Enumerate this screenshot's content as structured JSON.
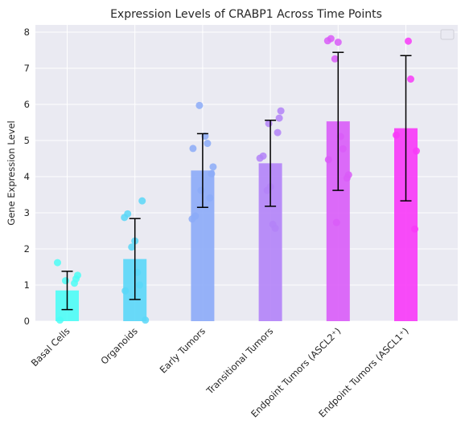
{
  "chart_data": {
    "type": "bar",
    "title": "Expression Levels of CRABP1 Across Time Points",
    "xlabel": "",
    "ylabel": "Gene Expression Level",
    "ylim": [
      0,
      8.2
    ],
    "yticks": [
      0,
      1,
      2,
      3,
      4,
      5,
      6,
      7,
      8
    ],
    "grid": true,
    "legend": "top-right (empty)",
    "background": "#eaeaf2",
    "categories": [
      "Basal Cells",
      "Organoids",
      "Early Tumors",
      "Transitional Tumors",
      "Endpoint Tumors (ASCL2⁺)",
      "Endpoint Tumors (ASCL1⁺)"
    ],
    "colors": [
      "#4dfdf6",
      "#5ad7f8",
      "#8cabf8",
      "#b383f8",
      "#d95cf8",
      "#f839f8"
    ],
    "values": [
      0.85,
      1.72,
      4.17,
      4.37,
      5.53,
      5.34
    ],
    "errors": [
      0.53,
      1.12,
      1.02,
      1.19,
      1.91,
      2.01
    ],
    "points": [
      [
        1.62,
        1.27,
        1.17,
        1.12,
        1.05,
        0.03
      ],
      [
        3.33,
        2.97,
        2.87,
        2.22,
        2.05,
        1.35,
        1.0,
        0.84,
        0.03
      ],
      [
        5.97,
        5.12,
        4.92,
        4.78,
        4.27,
        4.08,
        3.62,
        3.41,
        2.91,
        2.83
      ],
      [
        5.82,
        5.62,
        5.47,
        5.22,
        4.57,
        4.51,
        3.72,
        3.62,
        2.68,
        2.57
      ],
      [
        7.82,
        7.76,
        7.72,
        7.26,
        5.11,
        4.77,
        4.47,
        4.05,
        3.96,
        2.73
      ],
      [
        7.75,
        6.7,
        5.15,
        4.71,
        2.55
      ]
    ]
  }
}
